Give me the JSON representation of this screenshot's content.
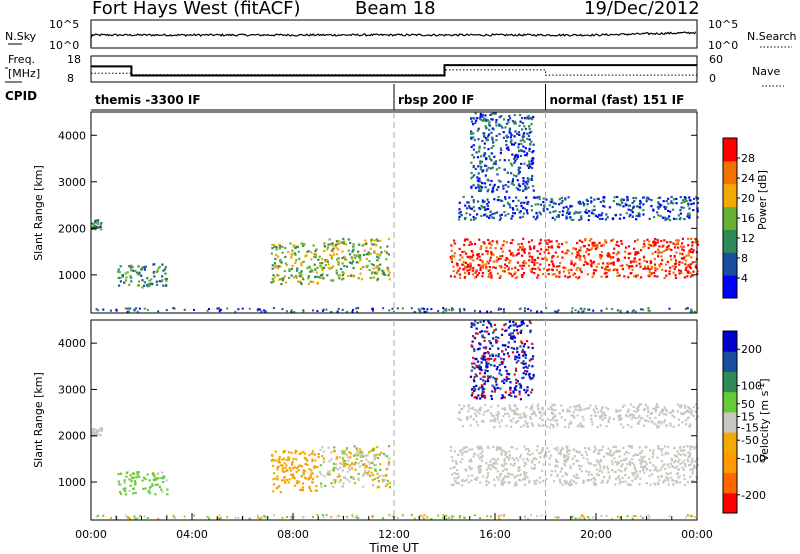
{
  "header": {
    "radar": "Fort Hays West (fitACF)",
    "beam": "Beam 18",
    "date": "19/Dec/2012"
  },
  "labels": {
    "nsky": "N.Sky",
    "nsearch": "N.Search",
    "freq": "Freq.",
    "mhz": "[MHz]",
    "nave": "Nave",
    "cpid": "CPID"
  },
  "cpid_segments": [
    {
      "start_hour": 0.0,
      "label": "themis -3300 IF"
    },
    {
      "start_hour": 12.0,
      "label": "rbsp 200 IF"
    },
    {
      "start_hour": 18.0,
      "label": "normal (fast) 151 IF"
    }
  ],
  "nsky_panel": {
    "left_ticks": [
      "10^5",
      "10^0"
    ],
    "right_ticks": [
      "10^5",
      "10^0"
    ]
  },
  "freq_panel": {
    "left_ticks": [
      "18",
      "8"
    ],
    "right_ticks": [
      "60",
      "0"
    ],
    "freq_steps": [
      {
        "t0": 0.0,
        "t1": 1.6,
        "freq_mhz": 14
      },
      {
        "t0": 1.6,
        "t1": 14.0,
        "freq_mhz": 10.5
      },
      {
        "t0": 14.0,
        "t1": 24.0,
        "freq_mhz": 14.5
      }
    ],
    "nave_steps": [
      {
        "t0": 0.0,
        "t1": 1.6,
        "nave": 20
      },
      {
        "t0": 1.6,
        "t1": 14.0,
        "nave": 17
      },
      {
        "t0": 14.0,
        "t1": 18.0,
        "nave": 28
      },
      {
        "t0": 18.0,
        "t1": 24.0,
        "nave": 16
      }
    ]
  },
  "chart_data": [
    {
      "type": "heatmap",
      "panel": "power",
      "ylabel": "Slant Range [km]",
      "ylim": [
        180,
        4500
      ],
      "yticks": [
        1000,
        2000,
        3000,
        4000
      ],
      "xlim": [
        0,
        24
      ],
      "colorbar": {
        "label": "Power [dB]",
        "range": [
          0,
          32
        ],
        "ticks": [
          4,
          8,
          12,
          16,
          20,
          24,
          28
        ],
        "colors": [
          "#0000ff",
          "#1a4fa0",
          "#2e8b57",
          "#66b032",
          "#f2a900",
          "#f27200",
          "#ff0000"
        ]
      },
      "echo_regions": [
        {
          "t0": 0.0,
          "t1": 0.4,
          "r0": 2000,
          "r1": 2200,
          "level": 2
        },
        {
          "t0": 1.0,
          "t1": 3.0,
          "r0": 750,
          "r1": 1250,
          "level": 2
        },
        {
          "t0": 7.1,
          "t1": 9.0,
          "r0": 800,
          "r1": 1700,
          "level": 3
        },
        {
          "t0": 9.0,
          "t1": 11.8,
          "r0": 900,
          "r1": 1800,
          "level": 3
        },
        {
          "t0": 14.2,
          "t1": 24.0,
          "r0": 950,
          "r1": 1800,
          "level": 6
        },
        {
          "t0": 14.5,
          "t1": 24.0,
          "r0": 2200,
          "r1": 2700,
          "level": 1
        },
        {
          "t0": 15.0,
          "t1": 17.5,
          "r0": 2800,
          "r1": 4500,
          "level": 1
        }
      ]
    },
    {
      "type": "heatmap",
      "panel": "velocity",
      "ylabel": "Slant Range [km]",
      "xlabel": "Time UT",
      "ylim": [
        180,
        4500
      ],
      "yticks": [
        1000,
        2000,
        3000,
        4000
      ],
      "xlim": [
        0,
        24
      ],
      "xtick_labels": [
        "00:00",
        "04:00",
        "08:00",
        "12:00",
        "16:00",
        "20:00",
        "00:00"
      ],
      "colorbar": {
        "label": "Velocity [m s^-1]",
        "range": [
          -250,
          250
        ],
        "ticks": [
          200,
          100,
          50,
          15,
          -15,
          -50,
          -100,
          -200
        ],
        "colors": [
          "#ff0000",
          "#ff6600",
          "#ff9900",
          "#f2a900",
          "#c8c8c0",
          "#66cc33",
          "#2e8b57",
          "#1a4fa0",
          "#0000cc"
        ]
      },
      "echo_regions": [
        {
          "t0": 0.0,
          "t1": 0.4,
          "r0": 2000,
          "r1": 2200,
          "class": "ground"
        },
        {
          "t0": 1.0,
          "t1": 3.0,
          "r0": 750,
          "r1": 1250,
          "class": "low_positive"
        },
        {
          "t0": 7.1,
          "t1": 9.0,
          "r0": 800,
          "r1": 1700,
          "class": "negative"
        },
        {
          "t0": 9.0,
          "t1": 11.8,
          "r0": 900,
          "r1": 1800,
          "class": "mixed"
        },
        {
          "t0": 14.2,
          "t1": 24.0,
          "r0": 950,
          "r1": 1800,
          "class": "ground"
        },
        {
          "t0": 14.5,
          "t1": 24.0,
          "r0": 2200,
          "r1": 2700,
          "class": "ground"
        },
        {
          "t0": 15.0,
          "t1": 17.5,
          "r0": 2800,
          "r1": 4500,
          "class": "positive"
        }
      ]
    }
  ]
}
